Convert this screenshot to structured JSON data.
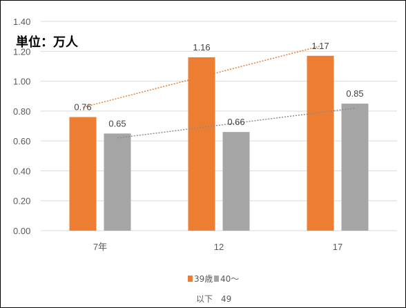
{
  "chart_data": {
    "type": "bar",
    "unit_label": "単位：万人",
    "categories": [
      "7年",
      "12",
      "17"
    ],
    "ylim": [
      0,
      1.4
    ],
    "yticks": [
      "0.00",
      "0.20",
      "0.40",
      "0.60",
      "0.80",
      "1.00",
      "1.20",
      "1.40"
    ],
    "grid": true,
    "legend_position": "bottom",
    "series": [
      {
        "name": "39歳",
        "values": [
          0.76,
          1.16,
          1.17
        ],
        "labels": [
          "0.76",
          "1.16",
          "1.17"
        ],
        "color": "#ed7d31",
        "trendline": "linear",
        "trend_color": "#ed7d31"
      },
      {
        "name": "40～",
        "values": [
          0.65,
          0.66,
          0.85
        ],
        "labels": [
          "0.65",
          "0.66",
          "0.85"
        ],
        "color": "#a5a5a5",
        "trendline": "linear",
        "trend_color": "#8c8c8c"
      }
    ],
    "legend_extra_text": "以下　49"
  }
}
